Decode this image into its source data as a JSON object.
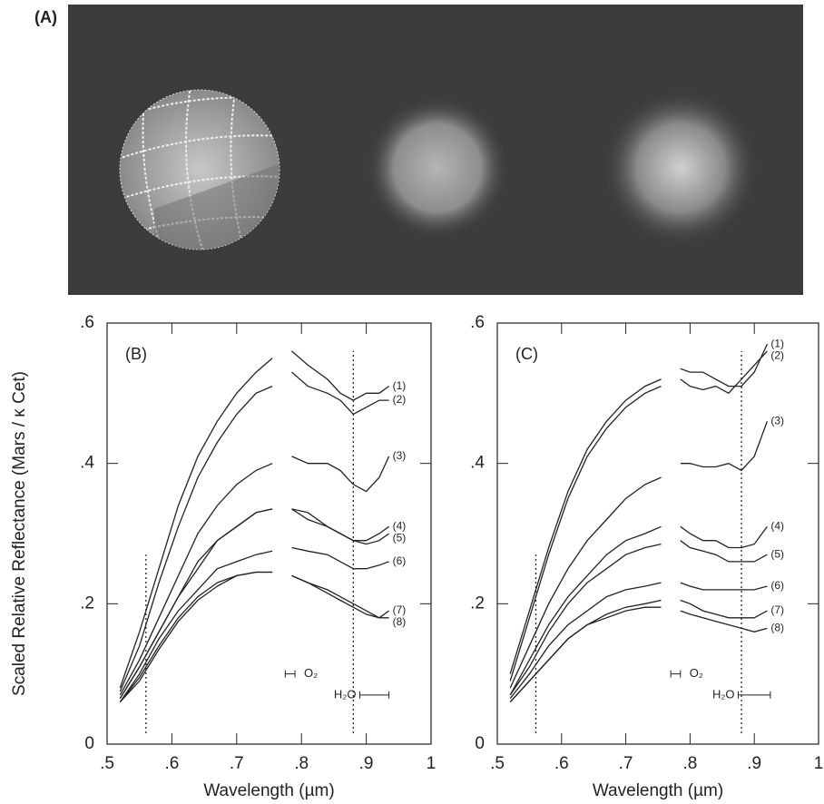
{
  "panel_a": {
    "label": "(A)"
  },
  "chart_data": [
    {
      "type": "line",
      "label": "(B)",
      "ylabel": "Scaled Relative Reflectance (Mars / κ Cet)",
      "xlabel": "Wavelength (µm)",
      "xlim": [
        0.5,
        1
      ],
      "ylim": [
        0,
        0.6
      ],
      "xticks": [
        {
          "value": 0.5,
          "label": ".5"
        },
        {
          "value": 0.6,
          "label": ".6"
        },
        {
          "value": 0.7,
          "label": ".7"
        },
        {
          "value": 0.8,
          "label": ".8"
        },
        {
          "value": 0.9,
          "label": ".9"
        },
        1
      ],
      "yticks": [
        0,
        {
          "value": 0.2,
          "label": ".2"
        },
        {
          "value": 0.4,
          "label": ".4"
        },
        {
          "value": 0.6,
          "label": ".6"
        }
      ],
      "reference_lines": [
        0.56,
        0.88
      ],
      "annotations": [
        {
          "text": "O₂",
          "range": [
            0.775,
            0.79
          ]
        },
        {
          "text": "H₂O",
          "range": [
            0.89,
            0.935
          ]
        }
      ],
      "x": [
        0.52,
        0.55,
        0.58,
        0.61,
        0.64,
        0.67,
        0.7,
        0.73,
        0.755,
        0.77,
        0.785,
        0.81,
        0.84,
        0.86,
        0.88,
        0.9,
        0.92,
        0.935
      ],
      "series": [
        {
          "name": "(1)",
          "color": "#222",
          "values": [
            0.08,
            0.16,
            0.25,
            0.34,
            0.41,
            0.46,
            0.5,
            0.53,
            0.55,
            null,
            0.56,
            0.54,
            0.52,
            0.5,
            0.49,
            0.5,
            0.5,
            0.51
          ]
        },
        {
          "name": "(2)",
          "color": "#222",
          "values": [
            0.075,
            0.14,
            0.23,
            0.31,
            0.38,
            0.43,
            0.47,
            0.5,
            0.51,
            null,
            0.53,
            0.51,
            0.5,
            0.49,
            0.47,
            0.48,
            0.49,
            0.49
          ]
        },
        {
          "name": "(3)",
          "color": "#222",
          "values": [
            0.07,
            0.12,
            0.18,
            0.24,
            0.3,
            0.34,
            0.37,
            0.39,
            0.4,
            null,
            0.41,
            0.4,
            0.4,
            0.39,
            0.37,
            0.36,
            0.38,
            0.41
          ]
        },
        {
          "name": "(4)",
          "color": "#222",
          "values": [
            0.065,
            0.11,
            0.16,
            0.21,
            0.26,
            0.29,
            0.31,
            0.33,
            0.335,
            null,
            0.335,
            0.33,
            0.31,
            0.3,
            0.29,
            0.29,
            0.3,
            0.31
          ]
        },
        {
          "name": "(5)",
          "color": "#222",
          "values": [
            0.065,
            0.11,
            0.16,
            0.21,
            0.25,
            0.29,
            0.31,
            0.33,
            0.335,
            null,
            0.335,
            0.32,
            0.31,
            0.3,
            0.29,
            0.285,
            0.29,
            0.3
          ]
        },
        {
          "name": "(6)",
          "color": "#222",
          "values": [
            0.06,
            0.1,
            0.15,
            0.19,
            0.22,
            0.25,
            0.26,
            0.27,
            0.275,
            null,
            0.28,
            0.275,
            0.27,
            0.26,
            0.25,
            0.25,
            0.255,
            0.26
          ]
        },
        {
          "name": "(7)",
          "color": "#222",
          "values": [
            0.06,
            0.095,
            0.14,
            0.18,
            0.21,
            0.23,
            0.24,
            0.245,
            0.245,
            null,
            0.24,
            0.23,
            0.22,
            0.21,
            0.2,
            0.19,
            0.18,
            0.19
          ]
        },
        {
          "name": "(8)",
          "color": "#222",
          "values": [
            0.06,
            0.09,
            0.135,
            0.175,
            0.205,
            0.225,
            0.24,
            0.245,
            0.245,
            null,
            0.24,
            0.23,
            0.215,
            0.205,
            0.195,
            0.185,
            0.18,
            0.18
          ]
        }
      ]
    },
    {
      "type": "line",
      "label": "(C)",
      "xlabel": "Wavelength (µm)",
      "xlim": [
        0.5,
        1
      ],
      "ylim": [
        0,
        0.6
      ],
      "xticks": [
        {
          "value": 0.5,
          "label": ".5"
        },
        {
          "value": 0.6,
          "label": ".6"
        },
        {
          "value": 0.7,
          "label": ".7"
        },
        {
          "value": 0.8,
          "label": ".8"
        },
        {
          "value": 0.9,
          "label": ".9"
        },
        1
      ],
      "yticks": [
        0,
        {
          "value": 0.2,
          "label": ".2"
        },
        {
          "value": 0.4,
          "label": ".4"
        },
        {
          "value": 0.6,
          "label": ".6"
        }
      ],
      "reference_lines": [
        0.56,
        0.88
      ],
      "annotations": [
        {
          "text": "O₂",
          "range": [
            0.77,
            0.785
          ]
        },
        {
          "text": "H₂O",
          "range": [
            0.875,
            0.925
          ]
        }
      ],
      "x": [
        0.52,
        0.55,
        0.58,
        0.61,
        0.64,
        0.67,
        0.7,
        0.73,
        0.755,
        0.77,
        0.785,
        0.8,
        0.82,
        0.84,
        0.86,
        0.88,
        0.9,
        0.92
      ],
      "series": [
        {
          "name": "(1)",
          "color": "#222",
          "values": [
            0.1,
            0.19,
            0.28,
            0.36,
            0.42,
            0.46,
            0.49,
            0.51,
            0.52,
            null,
            0.535,
            0.53,
            0.53,
            0.52,
            0.51,
            0.51,
            0.53,
            0.57
          ]
        },
        {
          "name": "(2)",
          "color": "#222",
          "values": [
            0.09,
            0.18,
            0.27,
            0.35,
            0.41,
            0.45,
            0.48,
            0.5,
            0.51,
            null,
            0.52,
            0.51,
            0.505,
            0.51,
            0.5,
            0.52,
            0.54,
            0.56
          ]
        },
        {
          "name": "(3)",
          "color": "#222",
          "values": [
            0.08,
            0.14,
            0.2,
            0.25,
            0.29,
            0.32,
            0.35,
            0.37,
            0.38,
            null,
            0.4,
            0.4,
            0.395,
            0.395,
            0.4,
            0.39,
            0.41,
            0.46
          ]
        },
        {
          "name": "(4)",
          "color": "#222",
          "values": [
            0.07,
            0.12,
            0.17,
            0.21,
            0.24,
            0.27,
            0.29,
            0.3,
            0.31,
            null,
            0.31,
            0.3,
            0.29,
            0.29,
            0.28,
            0.28,
            0.285,
            0.31
          ]
        },
        {
          "name": "(5)",
          "color": "#222",
          "values": [
            0.07,
            0.11,
            0.16,
            0.2,
            0.23,
            0.25,
            0.27,
            0.28,
            0.285,
            null,
            0.29,
            0.28,
            0.275,
            0.27,
            0.26,
            0.26,
            0.26,
            0.27
          ]
        },
        {
          "name": "(6)",
          "color": "#222",
          "values": [
            0.065,
            0.1,
            0.14,
            0.17,
            0.19,
            0.21,
            0.22,
            0.225,
            0.23,
            null,
            0.23,
            0.225,
            0.22,
            0.22,
            0.22,
            0.22,
            0.22,
            0.225
          ]
        },
        {
          "name": "(7)",
          "color": "#222",
          "values": [
            0.06,
            0.09,
            0.12,
            0.15,
            0.17,
            0.185,
            0.195,
            0.2,
            0.205,
            null,
            0.205,
            0.2,
            0.19,
            0.185,
            0.18,
            0.18,
            0.18,
            0.19
          ]
        },
        {
          "name": "(8)",
          "color": "#222",
          "values": [
            0.06,
            0.09,
            0.12,
            0.15,
            0.17,
            0.18,
            0.19,
            0.195,
            0.195,
            null,
            0.19,
            0.185,
            0.18,
            0.175,
            0.17,
            0.165,
            0.16,
            0.165
          ]
        }
      ]
    }
  ]
}
